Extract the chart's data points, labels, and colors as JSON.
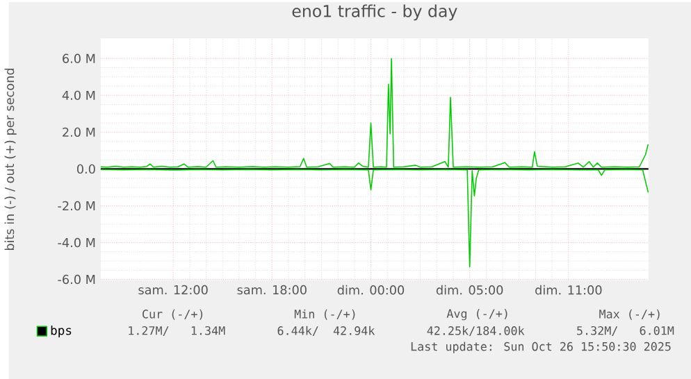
{
  "chart_data": {
    "type": "line",
    "title": "eno1 traffic - by day",
    "ylabel": "bits in (-) / out (+) per second",
    "xlim": [
      "2025-10-25T05:36",
      "2025-10-26T14:51"
    ],
    "xticks": [
      {
        "value": "2025-10-25T10:00",
        "label": "sam. 12:00"
      },
      {
        "value": "2025-10-25T16:00",
        "label": "sam. 18:00"
      },
      {
        "value": "2025-10-25T22:00",
        "label": "dim. 00:00"
      },
      {
        "value": "2025-10-26T04:00",
        "label": "dim. 05:00"
      },
      {
        "value": "2025-10-26T10:00",
        "label": "dim. 11:00"
      }
    ],
    "ylim": [
      -6.05,
      7.1
    ],
    "yticks": [
      {
        "value": -6,
        "label": "-6.0 M"
      },
      {
        "value": -4,
        "label": "-4.0 M"
      },
      {
        "value": -2,
        "label": "-2.0 M"
      },
      {
        "value": 0,
        "label": "0.0"
      },
      {
        "value": 2,
        "label": "2.0 M"
      },
      {
        "value": 4,
        "label": "4.0 M"
      },
      {
        "value": 6,
        "label": "6.0 M"
      }
    ],
    "grid": true,
    "legend": "bottom",
    "marker": "none",
    "line_style": "solid",
    "ref_lines": [
      {
        "axis": "y",
        "value": 0,
        "color": "#000000"
      }
    ],
    "series": [
      {
        "name": "bps",
        "color": "#00cc00",
        "x": [
          "2025-10-25T05:36",
          "2025-10-25T06:00",
          "2025-10-25T06:30",
          "2025-10-25T07:00",
          "2025-10-25T07:30",
          "2025-10-25T08:00",
          "2025-10-25T08:24",
          "2025-10-25T08:36",
          "2025-10-25T08:48",
          "2025-10-25T09:18",
          "2025-10-25T09:48",
          "2025-10-25T10:18",
          "2025-10-25T10:40",
          "2025-10-25T10:54",
          "2025-10-25T11:30",
          "2025-10-25T12:00",
          "2025-10-25T12:25",
          "2025-10-25T12:36",
          "2025-10-25T13:12",
          "2025-10-25T14:00",
          "2025-10-25T14:48",
          "2025-10-25T15:30",
          "2025-10-25T16:12",
          "2025-10-25T17:00",
          "2025-10-25T17:42",
          "2025-10-25T17:55",
          "2025-10-25T18:06",
          "2025-10-25T18:48",
          "2025-10-25T19:30",
          "2025-10-25T19:42",
          "2025-10-25T20:24",
          "2025-10-25T21:00",
          "2025-10-25T21:15",
          "2025-10-25T21:30",
          "2025-10-25T21:51",
          "2025-10-25T22:00",
          "2025-10-25T22:09",
          "2025-10-25T22:36",
          "2025-10-25T22:57",
          "2025-10-25T23:04",
          "2025-10-25T23:10",
          "2025-10-25T23:15",
          "2025-10-25T23:23",
          "2025-10-26T00:00",
          "2025-10-26T00:43",
          "2025-10-26T01:00",
          "2025-10-26T01:42",
          "2025-10-26T02:30",
          "2025-10-26T02:42",
          "2025-10-26T02:50",
          "2025-10-26T03:00",
          "2025-10-26T03:48",
          "2025-10-26T04:36",
          "2025-10-26T05:24",
          "2025-10-26T06:08",
          "2025-10-26T06:24",
          "2025-10-26T07:12",
          "2025-10-26T07:48",
          "2025-10-26T07:56",
          "2025-10-26T08:06",
          "2025-10-26T09:00",
          "2025-10-26T09:48",
          "2025-10-26T10:35",
          "2025-10-26T10:54",
          "2025-10-26T11:15",
          "2025-10-26T11:30",
          "2025-10-26T11:45",
          "2025-10-26T12:00",
          "2025-10-26T12:48",
          "2025-10-26T13:36",
          "2025-10-26T14:18",
          "2025-10-26T14:40",
          "2025-10-26T14:50"
        ],
        "values": [
          0.12,
          0.1,
          0.15,
          0.1,
          0.12,
          0.1,
          0.14,
          0.27,
          0.1,
          0.15,
          0.1,
          0.12,
          0.27,
          0.1,
          0.13,
          0.1,
          0.45,
          0.1,
          0.12,
          0.1,
          0.13,
          0.1,
          0.12,
          0.1,
          0.13,
          0.57,
          0.1,
          0.12,
          0.3,
          0.1,
          0.12,
          0.1,
          0.32,
          0.15,
          0.1,
          2.5,
          0.1,
          0.12,
          0.1,
          4.6,
          1.9,
          6.0,
          0.1,
          0.12,
          0.2,
          0.1,
          0.12,
          0.4,
          0.1,
          3.9,
          0.1,
          0.12,
          0.1,
          0.12,
          0.35,
          0.1,
          0.12,
          0.1,
          0.94,
          0.15,
          0.1,
          0.12,
          0.32,
          0.1,
          0.4,
          0.1,
          0.32,
          0.1,
          0.12,
          0.1,
          0.12,
          0.77,
          1.34
        ]
      },
      {
        "color": "#00cc00",
        "x": [
          "2025-10-25T05:36",
          "2025-10-25T07:00",
          "2025-10-25T08:30",
          "2025-10-25T10:00",
          "2025-10-25T11:30",
          "2025-10-25T13:00",
          "2025-10-25T14:30",
          "2025-10-25T16:00",
          "2025-10-25T17:30",
          "2025-10-25T19:00",
          "2025-10-25T20:30",
          "2025-10-25T21:51",
          "2025-10-25T22:00",
          "2025-10-25T22:09",
          "2025-10-25T23:30",
          "2025-10-26T01:00",
          "2025-10-26T02:30",
          "2025-10-26T03:51",
          "2025-10-26T04:00",
          "2025-10-26T04:09",
          "2025-10-26T04:17",
          "2025-10-26T04:24",
          "2025-10-26T04:33",
          "2025-10-26T06:00",
          "2025-10-26T07:30",
          "2025-10-26T09:00",
          "2025-10-26T10:30",
          "2025-10-26T11:48",
          "2025-10-26T12:00",
          "2025-10-26T12:12",
          "2025-10-26T13:30",
          "2025-10-26T14:30",
          "2025-10-26T14:50"
        ],
        "values": [
          -0.03,
          -0.05,
          -0.03,
          -0.06,
          -0.03,
          -0.05,
          -0.03,
          -0.05,
          -0.03,
          -0.05,
          -0.03,
          -0.05,
          -1.14,
          -0.05,
          -0.03,
          -0.05,
          -0.03,
          -0.05,
          -5.32,
          -0.1,
          -1.46,
          -0.5,
          -0.05,
          -0.03,
          -0.05,
          -0.03,
          -0.05,
          -0.05,
          -0.35,
          -0.05,
          -0.03,
          -0.05,
          -1.27
        ]
      }
    ],
    "annotations": [
      "Cur (-/+)",
      "Min (-/+)",
      "Avg (-/+)",
      "Max (-/+)",
      "1.27M/   1.34M",
      "6.44k/  42.94k",
      "42.25k/184.00k",
      "5.32M/   6.01M",
      "Last update: Sun Oct 26 15:50:30 2025"
    ]
  }
}
